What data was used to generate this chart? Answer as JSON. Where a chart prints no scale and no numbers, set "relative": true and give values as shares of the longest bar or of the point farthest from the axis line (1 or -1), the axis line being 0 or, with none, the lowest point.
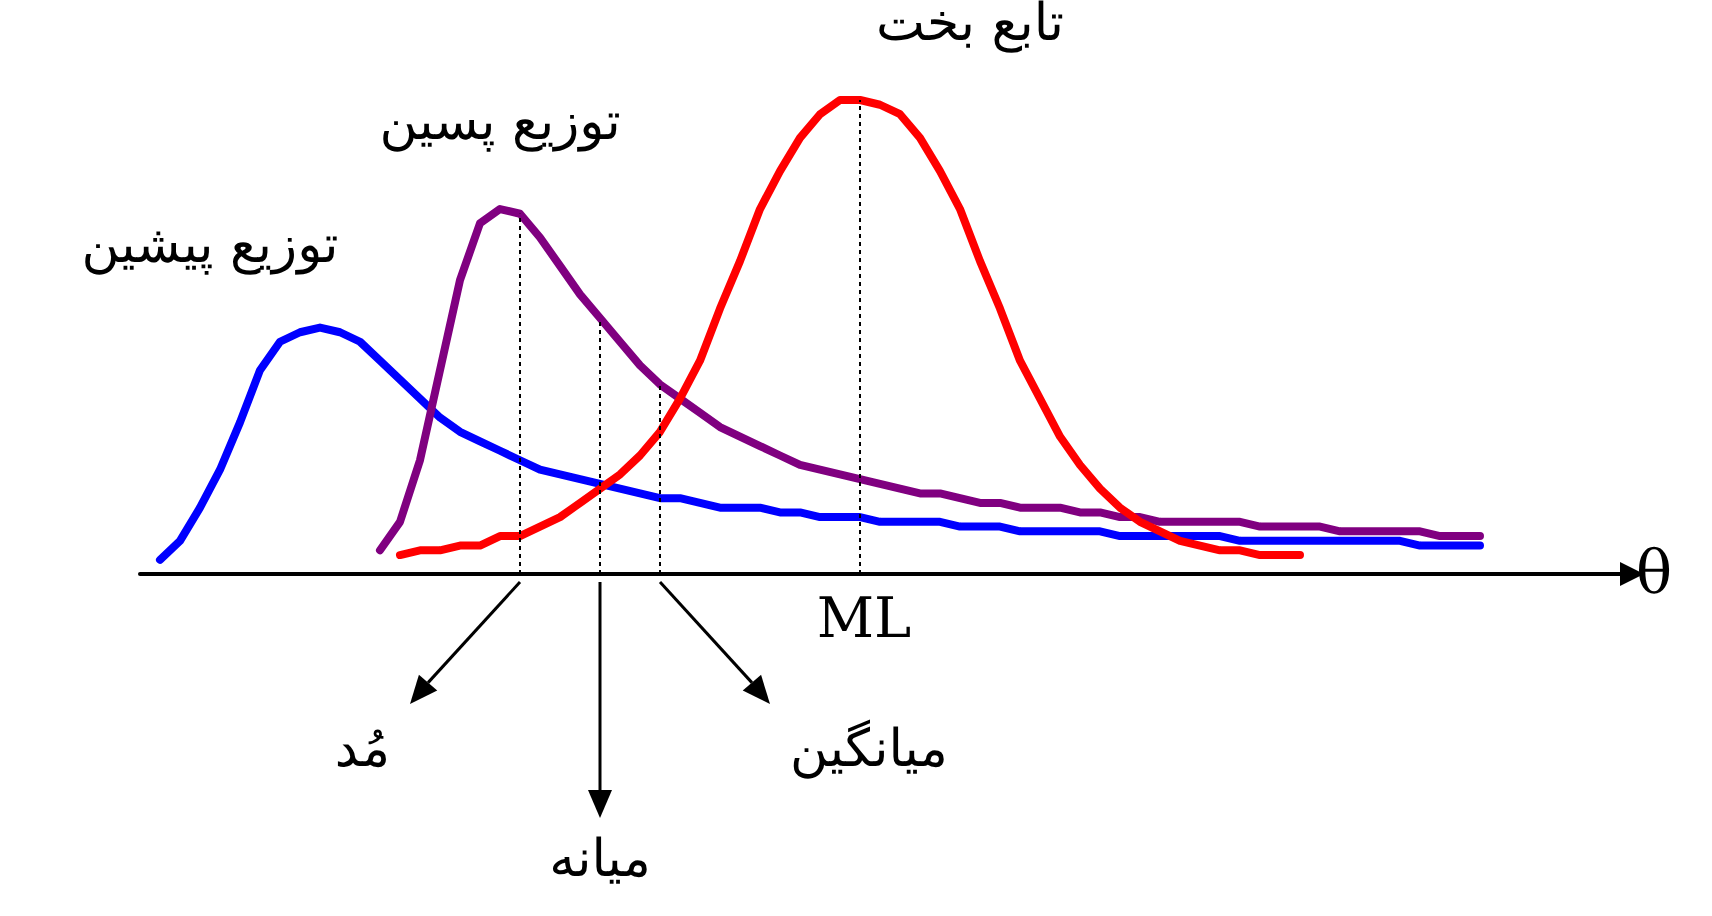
{
  "chart_data": {
    "type": "line",
    "relative": true,
    "xlabel": "θ",
    "line_style": "solid",
    "categories": [
      null,
      null,
      null,
      null,
      null,
      null,
      null,
      null,
      null,
      null,
      null,
      null,
      null,
      null,
      null,
      null,
      null,
      null,
      null,
      null,
      null,
      null,
      null,
      null,
      null,
      null,
      null,
      null,
      null,
      null,
      null,
      null,
      null,
      null,
      null,
      null,
      null,
      null,
      null,
      null,
      null,
      null,
      null,
      null,
      null,
      null,
      null,
      null,
      null,
      null,
      null,
      null,
      null,
      null,
      null,
      null,
      null,
      null,
      null,
      null,
      null,
      null,
      null,
      null,
      null,
      null,
      null,
      null,
      null,
      null,
      null,
      null,
      null,
      null,
      null
    ],
    "series": [
      {
        "name": "توزیع پیشین",
        "color": "#0000ff",
        "values": [
          null,
          0.03,
          0.07,
          0.14,
          0.22,
          0.32,
          0.43,
          0.49,
          0.51,
          0.52,
          0.51,
          0.49,
          0.45,
          0.41,
          0.37,
          0.33,
          0.3,
          0.28,
          0.26,
          0.24,
          0.22,
          0.21,
          0.2,
          0.19,
          0.18,
          0.17,
          0.16,
          0.16,
          0.15,
          0.14,
          0.14,
          0.14,
          0.13,
          0.13,
          0.12,
          0.12,
          0.12,
          0.11,
          0.11,
          0.11,
          0.11,
          0.1,
          0.1,
          0.1,
          0.09,
          0.09,
          0.09,
          0.09,
          0.09,
          0.08,
          0.08,
          0.08,
          0.08,
          0.08,
          0.08,
          0.07,
          0.07,
          0.07,
          0.07,
          0.07,
          0.07,
          0.07,
          0.07,
          0.07,
          0.06,
          0.06,
          0.06,
          0.06,
          null,
          null,
          null,
          null,
          null,
          null,
          null
        ]
      },
      {
        "name": "توزیع پسین",
        "color": "#800080",
        "values": [
          null,
          null,
          null,
          null,
          null,
          null,
          null,
          null,
          null,
          null,
          null,
          null,
          0.05,
          0.11,
          0.24,
          0.43,
          0.62,
          0.74,
          0.77,
          0.76,
          0.71,
          0.65,
          0.59,
          0.54,
          0.49,
          0.44,
          0.4,
          0.37,
          0.34,
          0.31,
          0.29,
          0.27,
          0.25,
          0.23,
          0.22,
          0.21,
          0.2,
          0.19,
          0.18,
          0.17,
          0.17,
          0.16,
          0.15,
          0.15,
          0.14,
          0.14,
          0.14,
          0.13,
          0.13,
          0.12,
          0.12,
          0.11,
          0.11,
          0.11,
          0.11,
          0.11,
          0.1,
          0.1,
          0.1,
          0.1,
          0.09,
          0.09,
          0.09,
          0.09,
          0.09,
          0.08,
          0.08,
          0.08,
          null,
          null,
          null,
          null,
          null,
          null,
          null
        ]
      },
      {
        "name": "تابع بخت",
        "color": "#ff0000",
        "values": [
          null,
          null,
          null,
          null,
          null,
          null,
          null,
          null,
          null,
          null,
          null,
          null,
          null,
          0.04,
          0.05,
          0.05,
          0.06,
          0.06,
          0.08,
          0.08,
          0.1,
          0.12,
          0.15,
          0.18,
          0.21,
          0.25,
          0.3,
          0.37,
          0.45,
          0.56,
          0.66,
          0.77,
          0.85,
          0.92,
          0.97,
          1.0,
          1.0,
          0.99,
          0.97,
          0.92,
          0.85,
          0.77,
          0.66,
          0.56,
          0.45,
          0.37,
          0.29,
          0.23,
          0.18,
          0.14,
          0.11,
          0.09,
          0.07,
          0.06,
          0.05,
          0.05,
          0.04,
          0.04,
          0.04,
          null,
          null,
          null,
          null,
          null,
          null,
          null,
          null,
          null,
          null,
          null,
          null,
          null,
          null,
          null,
          null
        ]
      }
    ],
    "annotations": [
      "مُد",
      "میانه",
      "میانگین",
      "ML"
    ]
  }
}
